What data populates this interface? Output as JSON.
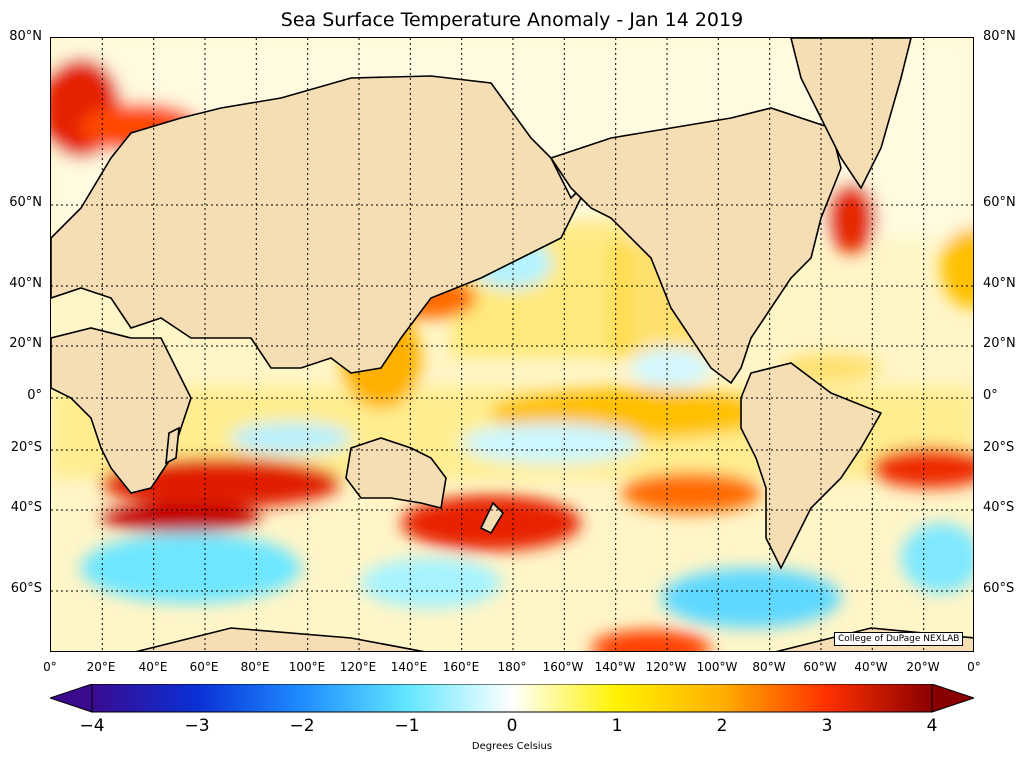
{
  "title": "Sea Surface Temperature Anomaly - Jan 14 2019",
  "credit": "College of DuPage NEXLAB",
  "lat_labels": [
    "80°N",
    "60°N",
    "40°N",
    "20°N",
    "0°",
    "20°S",
    "40°S",
    "60°S"
  ],
  "lon_labels": [
    "0°",
    "20°E",
    "40°E",
    "60°E",
    "80°E",
    "100°E",
    "120°E",
    "140°E",
    "160°E",
    "180°",
    "160°W",
    "140°W",
    "120°W",
    "100°W",
    "80°W",
    "60°W",
    "40°W",
    "20°W",
    "0°"
  ],
  "colorbar": {
    "label": "Degrees Celsius",
    "ticks": [
      "−4",
      "−3",
      "−2",
      "−1",
      "0",
      "1",
      "2",
      "3",
      "4"
    ],
    "range": [
      -4,
      4
    ],
    "colors": [
      "#3a0b8f",
      "#0a30d6",
      "#1f8cff",
      "#62e6ff",
      "#ffffff",
      "#fff200",
      "#ffb000",
      "#ff3000",
      "#8a0000"
    ]
  },
  "map": {
    "projection": "Mercator",
    "land_color": "#f5deb3",
    "gridlines": "dotted"
  }
}
